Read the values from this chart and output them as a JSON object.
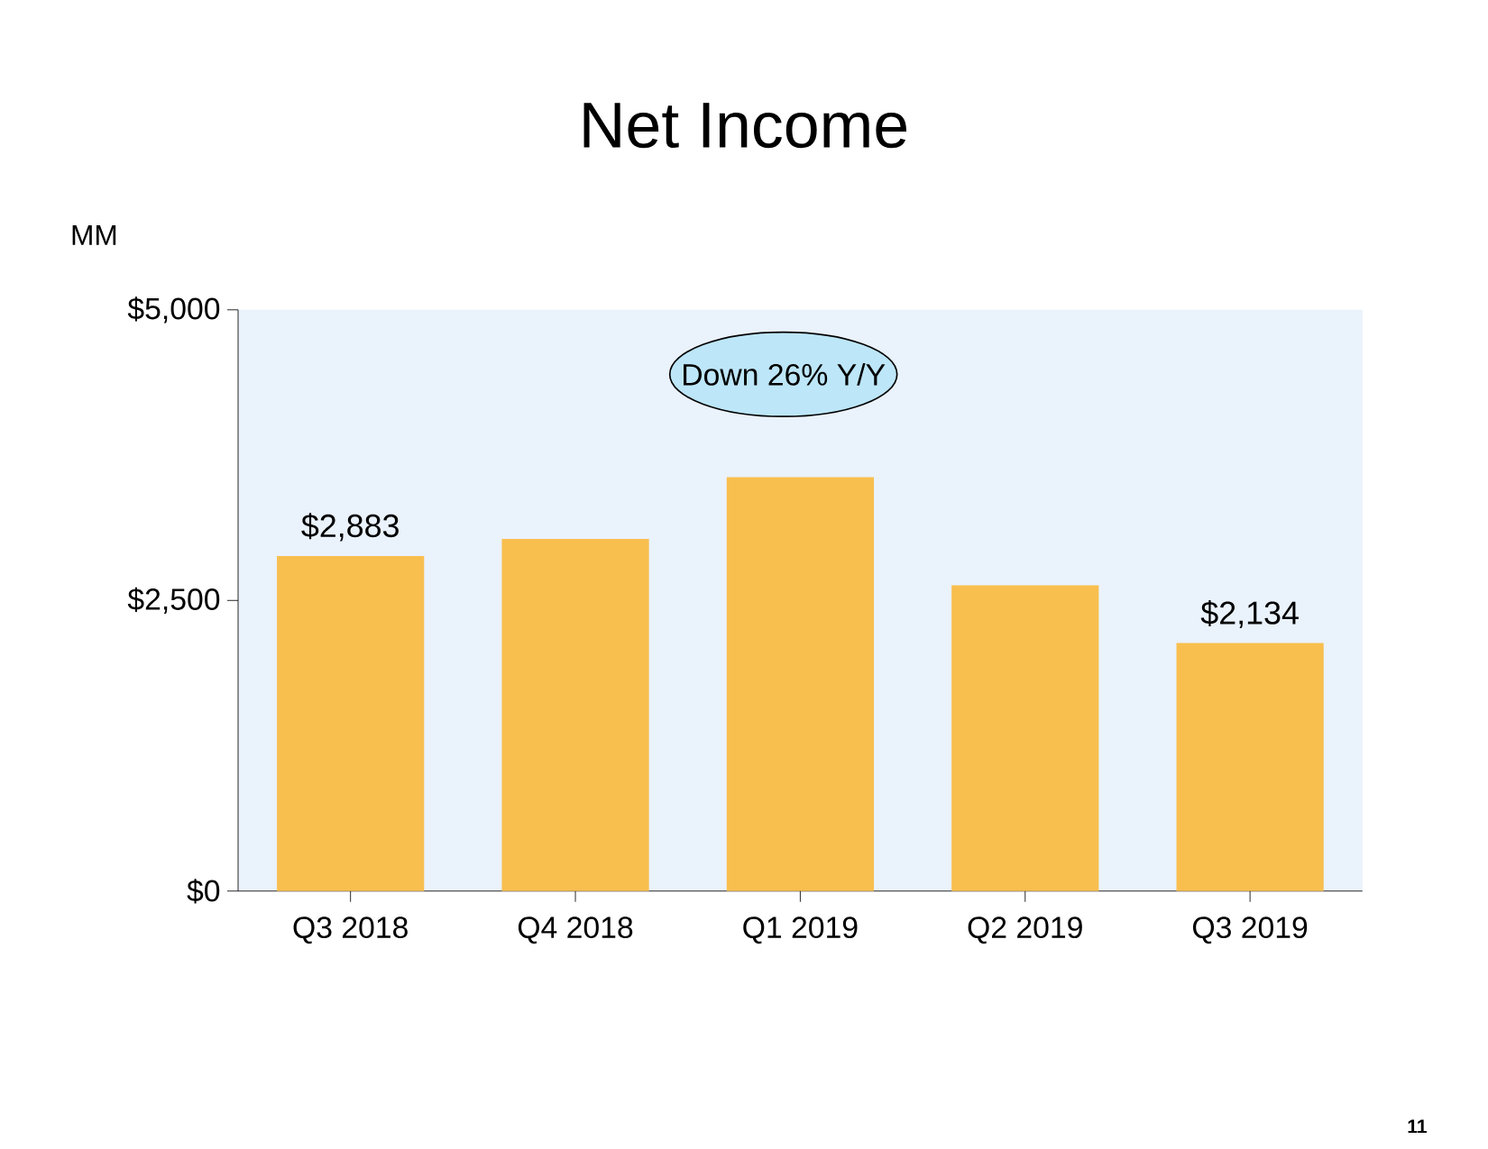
{
  "chart_data": {
    "type": "bar",
    "title": "Net Income",
    "ylabel": "MM",
    "categories": [
      "Q3 2018",
      "Q4 2018",
      "Q1 2019",
      "Q2 2019",
      "Q3 2019"
    ],
    "values": [
      2883,
      3030,
      3560,
      2630,
      2134
    ],
    "value_labels": [
      "$2,883",
      null,
      null,
      null,
      "$2,134"
    ],
    "color": "#f8bf4f",
    "ylim": [
      0,
      5000
    ],
    "yticks": [
      {
        "value": 0,
        "label": "$0"
      },
      {
        "value": 2500,
        "label": "$2,500"
      },
      {
        "value": 5000,
        "label": "$5,000"
      }
    ],
    "annotations": [
      "Down 26% Y/Y",
      "11"
    ],
    "grid": false
  }
}
